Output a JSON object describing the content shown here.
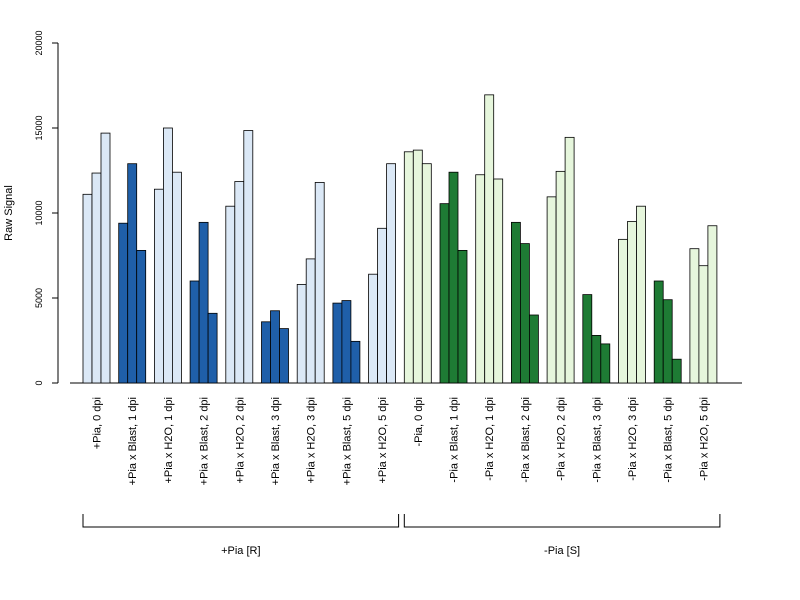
{
  "chart_data": {
    "type": "bar",
    "ylabel": "Raw Signal",
    "ylim": [
      0,
      20000
    ],
    "yticks": [
      0,
      5000,
      10000,
      15000,
      20000
    ],
    "colors": {
      "pia_h2o": "#dbe8f6",
      "pia_blast": "#1f5fa9",
      "nopia_h2o": "#e6f6dc",
      "nopia_blast": "#1e7b34"
    },
    "categories": [
      {
        "label": "+Pia, 0 dpi",
        "color_key": "pia_h2o",
        "values": [
          11100,
          12350,
          14700
        ]
      },
      {
        "label": "+Pia x Blast, 1 dpi",
        "color_key": "pia_blast",
        "values": [
          9400,
          12900,
          7800
        ]
      },
      {
        "label": "+Pia x H2O, 1 dpi",
        "color_key": "pia_h2o",
        "values": [
          11400,
          15000,
          12400
        ]
      },
      {
        "label": "+Pia x Blast, 2 dpi",
        "color_key": "pia_blast",
        "values": [
          6000,
          9450,
          4100
        ]
      },
      {
        "label": "+Pia x H2O, 2 dpi",
        "color_key": "pia_h2o",
        "values": [
          10400,
          11850,
          14850
        ]
      },
      {
        "label": "+Pia x Blast, 3 dpi",
        "color_key": "pia_blast",
        "values": [
          3600,
          4250,
          3200
        ]
      },
      {
        "label": "+Pia x H2O, 3 dpi",
        "color_key": "pia_h2o",
        "values": [
          5800,
          7300,
          11800
        ]
      },
      {
        "label": "+Pia x Blast, 5 dpi",
        "color_key": "pia_blast",
        "values": [
          4700,
          4850,
          2450
        ]
      },
      {
        "label": "+Pia x H2O, 5 dpi",
        "color_key": "pia_h2o",
        "values": [
          6400,
          9100,
          12900
        ]
      },
      {
        "label": "-Pia, 0 dpi",
        "color_key": "nopia_h2o",
        "values": [
          13600,
          13700,
          12900
        ]
      },
      {
        "label": "-Pia x Blast, 1 dpi",
        "color_key": "nopia_blast",
        "values": [
          10550,
          12400,
          7800
        ]
      },
      {
        "label": "-Pia x H2O, 1 dpi",
        "color_key": "nopia_h2o",
        "values": [
          12250,
          16950,
          12000
        ]
      },
      {
        "label": "-Pia x Blast, 2 dpi",
        "color_key": "nopia_blast",
        "values": [
          9450,
          8200,
          4000
        ]
      },
      {
        "label": "-Pia x H2O, 2 dpi",
        "color_key": "nopia_h2o",
        "values": [
          10950,
          12450,
          14450
        ]
      },
      {
        "label": "-Pia x Blast, 3 dpi",
        "color_key": "nopia_blast",
        "values": [
          5200,
          2800,
          2300
        ]
      },
      {
        "label": "-Pia x H2O, 3 dpi",
        "color_key": "nopia_h2o",
        "values": [
          8450,
          9500,
          10400
        ]
      },
      {
        "label": "-Pia x Blast, 5 dpi",
        "color_key": "nopia_blast",
        "values": [
          6000,
          4900,
          1400
        ]
      },
      {
        "label": "-Pia x H2O, 5 dpi",
        "color_key": "nopia_h2o",
        "values": [
          7900,
          6900,
          9250
        ]
      }
    ],
    "groups": [
      {
        "label": "+Pia [R]",
        "first": 0,
        "last": 8
      },
      {
        "label": "-Pia [S]",
        "first": 9,
        "last": 17
      }
    ]
  }
}
